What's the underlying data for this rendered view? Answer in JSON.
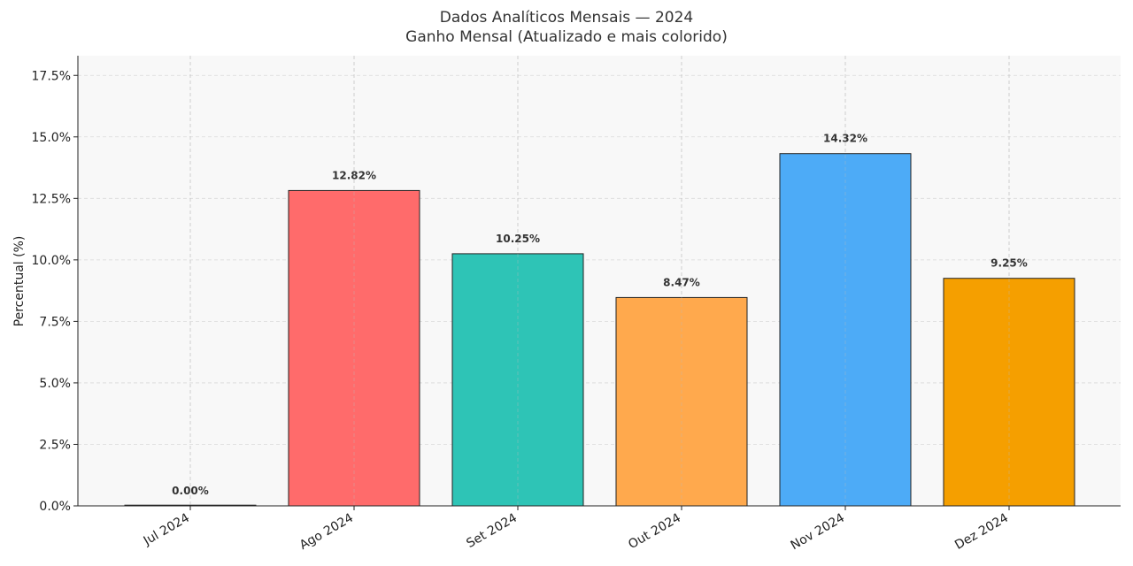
{
  "chart_data": {
    "type": "bar",
    "title": "Dados Analíticos Mensais — 2024",
    "subtitle": "Ganho Mensal (Atualizado e mais colorido)",
    "xlabel": "",
    "ylabel": "Percentual (%)",
    "categories": [
      "Jul 2024",
      "Ago 2024",
      "Set 2024",
      "Out 2024",
      "Nov 2024",
      "Dez 2024"
    ],
    "values": [
      0.0,
      12.82,
      10.25,
      8.47,
      14.32,
      9.25
    ],
    "value_labels": [
      "0.00%",
      "12.82%",
      "10.25%",
      "8.47%",
      "14.32%",
      "9.25%"
    ],
    "colors": [
      "#4dabf7",
      "#ff6b6b",
      "#2ec4b6",
      "#ffa94d",
      "#4dabf7",
      "#f59f00"
    ],
    "ylim": [
      0,
      18.3
    ],
    "yticks": [
      0,
      2.5,
      5.0,
      7.5,
      10.0,
      12.5,
      15.0,
      17.5
    ],
    "ytick_labels": [
      "0.0%",
      "2.5%",
      "5.0%",
      "7.5%",
      "10.0%",
      "12.5%",
      "15.0%",
      "17.5%"
    ],
    "grid": true,
    "legend": "none"
  }
}
